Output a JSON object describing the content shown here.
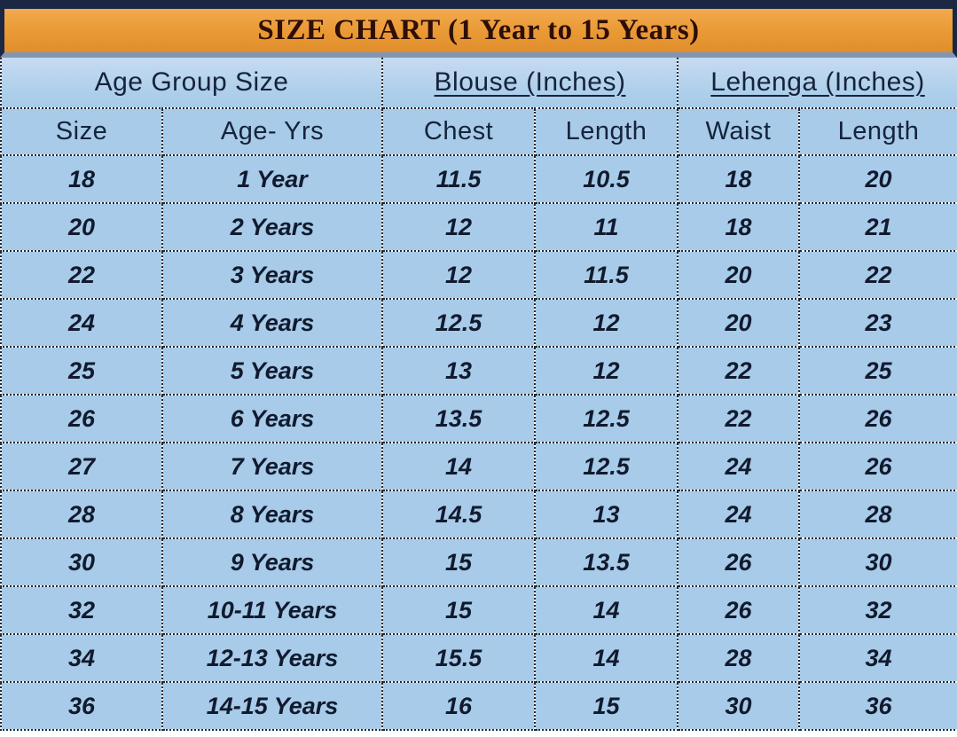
{
  "title": "SIZE CHART (1 Year to 15 Years)",
  "colors": {
    "title_bar_orange": "#E99934",
    "title_text_maroon": "#2E0E07",
    "frame_navy": "#1B2743",
    "frame_bottom_slate": "#8296B4",
    "table_bg_blue": "#A7CBE8",
    "header_text_navy": "#16233C",
    "data_text_dark": "#111A2E",
    "border_dot_navy": "#1E2836"
  },
  "chart_data": {
    "type": "table",
    "title": "SIZE CHART (1 Year to 15 Years)",
    "group_headers": [
      {
        "label": "Age Group Size",
        "span": 2,
        "underline": false
      },
      {
        "label": "Blouse (Inches)",
        "span": 2,
        "underline": true
      },
      {
        "label": "Lehenga (Inches)",
        "span": 2,
        "underline": true
      }
    ],
    "columns": [
      "Size",
      "Age- Yrs",
      "Chest",
      "Length",
      "Waist",
      "Length"
    ],
    "rows": [
      [
        "18",
        "1 Year",
        "11.5",
        "10.5",
        "18",
        "20"
      ],
      [
        "20",
        "2 Years",
        "12",
        "11",
        "18",
        "21"
      ],
      [
        "22",
        "3 Years",
        "12",
        "11.5",
        "20",
        "22"
      ],
      [
        "24",
        "4 Years",
        "12.5",
        "12",
        "20",
        "23"
      ],
      [
        "25",
        "5 Years",
        "13",
        "12",
        "22",
        "25"
      ],
      [
        "26",
        "6 Years",
        "13.5",
        "12.5",
        "22",
        "26"
      ],
      [
        "27",
        "7 Years",
        "14",
        "12.5",
        "24",
        "26"
      ],
      [
        "28",
        "8 Years",
        "14.5",
        "13",
        "24",
        "28"
      ],
      [
        "30",
        "9 Years",
        "15",
        "13.5",
        "26",
        "30"
      ],
      [
        "32",
        "10-11 Years",
        "15",
        "14",
        "26",
        "32"
      ],
      [
        "34",
        "12-13 Years",
        "15.5",
        "14",
        "28",
        "34"
      ],
      [
        "36",
        "14-15 Years",
        "16",
        "15",
        "30",
        "36"
      ]
    ]
  }
}
